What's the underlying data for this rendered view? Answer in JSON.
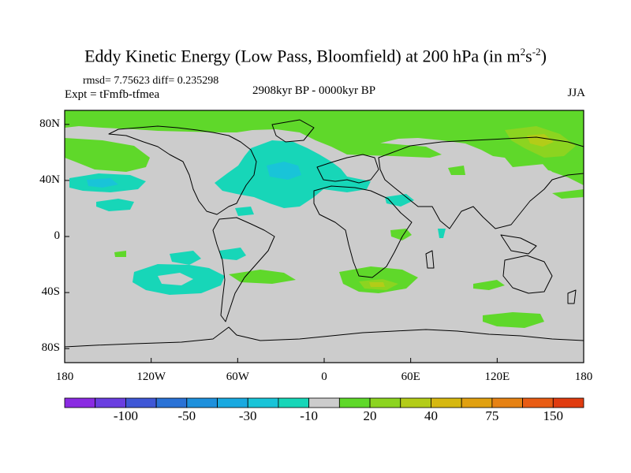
{
  "title": {
    "main": "Eddy Kinetic Energy (Low Pass, Bloomfield) at 200 hPa (in m",
    "sup1": "2",
    "mid": "s",
    "sup2": "-2",
    "end": ")"
  },
  "stats": "rmsd= 7.75623 diff= 0.235298",
  "experiment": "Expt = tFmfb-tfmea",
  "period": "2908kyr BP - 0000kyr BP",
  "season": "JJA",
  "y_axis": {
    "ticks": [
      {
        "value": 80,
        "label": "80N"
      },
      {
        "value": 40,
        "label": "40N"
      },
      {
        "value": 0,
        "label": "0"
      },
      {
        "value": -40,
        "label": "40S"
      },
      {
        "value": -80,
        "label": "80S"
      }
    ]
  },
  "x_axis": {
    "ticks": [
      {
        "value": -180,
        "label": "180"
      },
      {
        "value": -120,
        "label": "120W"
      },
      {
        "value": -60,
        "label": "60W"
      },
      {
        "value": 0,
        "label": "0"
      },
      {
        "value": 60,
        "label": "60E"
      },
      {
        "value": 120,
        "label": "120E"
      },
      {
        "value": 180,
        "label": "180"
      }
    ]
  },
  "colorbar": {
    "colors": [
      "#8a2be2",
      "#6a3ee0",
      "#3f57d6",
      "#2a72d6",
      "#1e90dc",
      "#19a9e0",
      "#19c4d8",
      "#17d6b8",
      "#cccccc",
      "#5fd82a",
      "#8cd420",
      "#b3cc18",
      "#d6b810",
      "#e0a010",
      "#e68214",
      "#e85c14",
      "#e03c10"
    ],
    "labels": [
      {
        "index": 2,
        "text": "-100"
      },
      {
        "index": 4,
        "text": "-50"
      },
      {
        "index": 6,
        "text": "-30"
      },
      {
        "index": 8,
        "text": "-10"
      },
      {
        "index": 10,
        "text": "20"
      },
      {
        "index": 12,
        "text": "40"
      },
      {
        "index": 14,
        "text": "75"
      },
      {
        "index": 16,
        "text": "150"
      }
    ]
  }
}
